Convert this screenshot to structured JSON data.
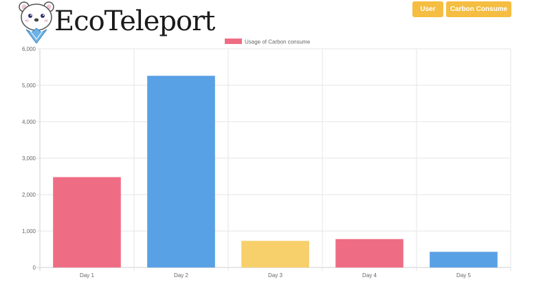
{
  "header": {
    "brand": "EcoTeleport",
    "logo_icon": "polar-bear-icon",
    "nav": [
      {
        "label": "User"
      },
      {
        "label": "Carbon Consume"
      }
    ],
    "nav_color": "#f5bd41"
  },
  "chart_data": {
    "type": "bar",
    "categories": [
      "Day 1",
      "Day 2",
      "Day 3",
      "Day 4",
      "Day 5"
    ],
    "series": [
      {
        "name": "Usage of Carbon consume",
        "values": [
          2480,
          5260,
          730,
          780,
          430
        ]
      }
    ],
    "bar_colors": [
      "#ef6d84",
      "#59a1e5",
      "#f7cf6b",
      "#ef6d84",
      "#59a1e5"
    ],
    "legend_color": "#ef6d84",
    "legend_position": "top-center",
    "ylim": [
      0,
      6000
    ],
    "y_ticks": [
      "0",
      "1,000",
      "2,000",
      "3,000",
      "4,000",
      "5,000",
      "6,000"
    ],
    "grid": true,
    "title": "",
    "xlabel": "",
    "ylabel": ""
  }
}
